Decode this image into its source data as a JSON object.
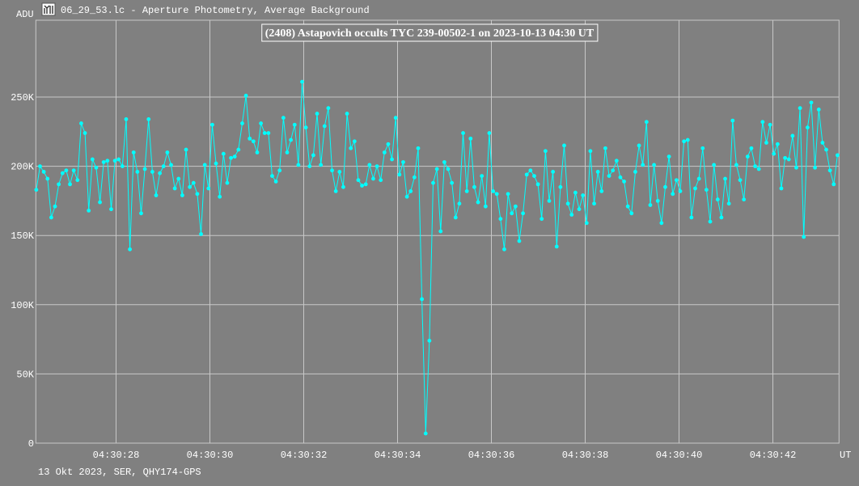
{
  "window": {
    "title": "06_29_53.lc - Aperture Photometry, Average Background",
    "icon": "light-curve-app-icon"
  },
  "footer": "13 Okt 2023, SER, QHY174-GPS",
  "colors": {
    "background": "#808080",
    "grid": "#c8c8c8",
    "series": "#00ffff",
    "text": "#ffffff"
  },
  "chart_data": {
    "type": "line",
    "title": "(2408) Astapovich occults TYC 239-00502-1 on 2023-10-13  04:30 UT",
    "ylabel": "ADU",
    "xlabel": "UT",
    "xlim_seconds_after_04_30_00": [
      26.29,
      43.41
    ],
    "ylim_kADU": [
      0,
      305.5
    ],
    "grid": true,
    "x_ticks": [
      {
        "value": 28,
        "label": "04:30:28"
      },
      {
        "value": 30,
        "label": "04:30:30"
      },
      {
        "value": 32,
        "label": "04:30:32"
      },
      {
        "value": 34,
        "label": "04:30:34"
      },
      {
        "value": 36,
        "label": "04:30:36"
      },
      {
        "value": 38,
        "label": "04:30:38"
      },
      {
        "value": 40,
        "label": "04:30:40"
      },
      {
        "value": 42,
        "label": "04:30:42"
      }
    ],
    "y_ticks": [
      {
        "value": 0,
        "label": "0"
      },
      {
        "value": 50,
        "label": "50K"
      },
      {
        "value": 100,
        "label": "100K"
      },
      {
        "value": 150,
        "label": "150K"
      },
      {
        "value": 200,
        "label": "200K"
      },
      {
        "value": 250,
        "label": "250K"
      }
    ],
    "series": [
      {
        "name": "Average Background photometry",
        "x_start_seconds": 26.3,
        "x_step_seconds": 0.0798,
        "values_kADU": [
          183,
          200,
          196,
          191,
          163,
          171,
          187,
          195,
          197,
          187,
          197,
          190,
          231,
          224,
          168,
          205,
          199,
          174,
          203,
          204,
          169,
          204,
          205,
          200,
          234,
          140,
          210,
          196,
          166,
          198,
          234,
          196,
          179,
          195,
          200,
          210,
          201,
          184,
          191,
          179,
          212,
          185,
          188,
          180,
          151,
          201,
          184,
          230,
          202,
          178,
          209,
          188,
          206,
          207,
          212,
          231,
          251,
          220,
          218,
          210,
          231,
          224,
          224,
          193,
          189,
          197,
          235,
          210,
          219,
          230,
          201,
          261,
          228,
          200,
          208,
          238,
          201,
          229,
          242,
          197,
          182,
          196,
          185,
          238,
          213,
          218,
          190,
          186,
          187,
          201,
          191,
          200,
          190,
          210,
          216,
          205,
          235,
          194,
          203,
          178,
          182,
          192,
          213,
          104,
          7,
          74,
          188,
          198,
          153,
          203,
          198,
          188,
          163,
          173,
          224,
          182,
          220,
          185,
          174,
          193,
          171,
          224,
          182,
          180,
          162,
          140,
          180,
          166,
          171,
          146,
          166,
          194,
          197,
          193,
          187,
          162,
          211,
          175,
          196,
          142,
          185,
          215,
          173,
          165,
          181,
          169,
          179,
          159,
          211,
          173,
          196,
          182,
          213,
          193,
          197,
          204,
          192,
          189,
          171,
          166,
          196,
          215,
          201,
          232,
          172,
          201,
          175,
          159,
          185,
          207,
          180,
          190,
          182,
          218,
          219,
          163,
          184,
          191,
          213,
          183,
          160,
          201,
          176,
          163,
          191,
          173,
          233,
          201,
          190,
          176,
          207,
          213,
          200,
          198,
          232,
          217,
          230,
          209,
          216,
          184,
          206,
          205,
          222,
          199,
          242,
          149,
          228,
          246,
          199,
          241,
          217,
          212,
          197,
          187,
          208
        ]
      }
    ]
  }
}
